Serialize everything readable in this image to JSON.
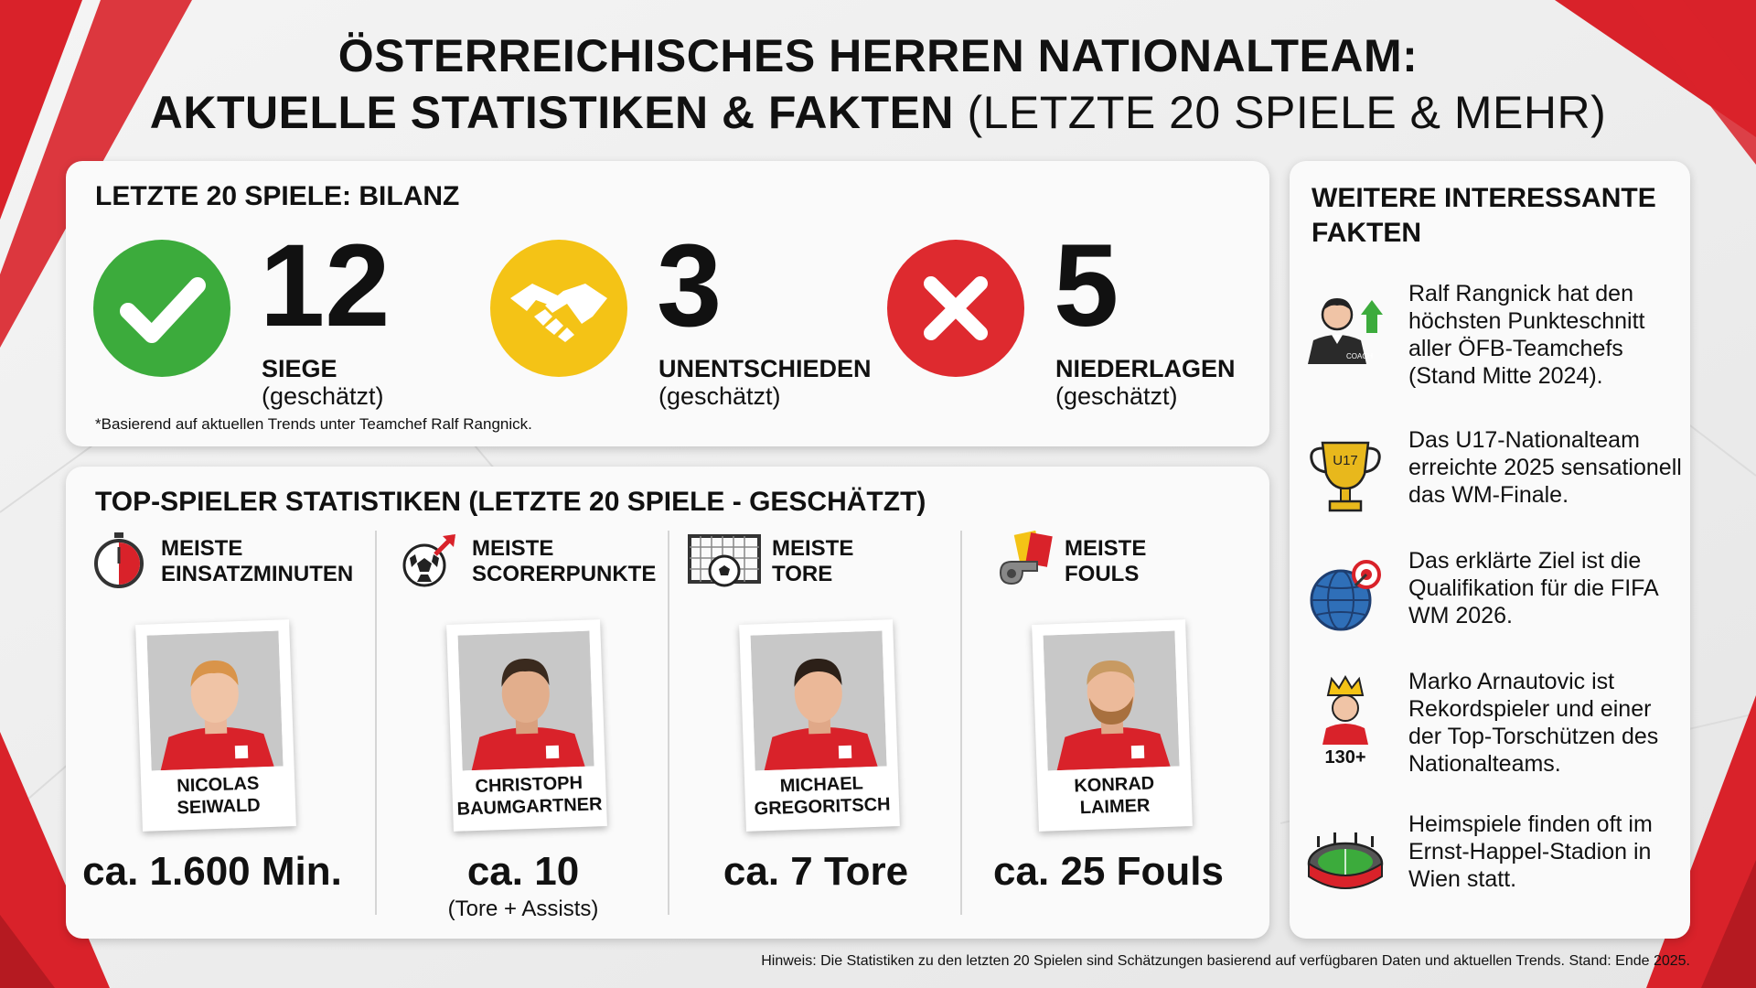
{
  "title": {
    "line1": "ÖSTERREICHISCHES HERREN NATIONALTEAM:",
    "line2_bold": "AKTUELLE STATISTIKEN & FAKTEN",
    "line2_light": "(LETZTE 20 SPIELE & MEHR)"
  },
  "bilanz": {
    "heading": "LETZTE 20 SPIELE: BILANZ",
    "stats": [
      {
        "value": "12",
        "label": "SIEGE",
        "note": "(geschätzt)",
        "color": "#3cab3c"
      },
      {
        "value": "3",
        "label": "UNENTSCHIEDEN",
        "note": "(geschätzt)",
        "color": "#f4c316"
      },
      {
        "value": "5",
        "label": "NIEDERLAGEN",
        "note": "(geschätzt)",
        "color": "#de2a2f"
      }
    ],
    "footnote": "*Basierend auf aktuellen Trends unter Teamchef Ralf Rangnick."
  },
  "players": {
    "heading": "TOP-SPIELER STATISTIKEN (LETZTE 20 SPIELE - GESCHÄTZT)",
    "columns": [
      {
        "cat1": "MEISTE",
        "cat2": "EINSATZMINUTEN",
        "name1": "NICOLAS",
        "name2": "SEIWALD",
        "value": "ca. 1.600 Min.",
        "sub": "",
        "icon": "stopwatch-icon"
      },
      {
        "cat1": "MEISTE",
        "cat2": "SCORERPUNKTE",
        "name1": "CHRISTOPH",
        "name2": "BAUMGARTNER",
        "value": "ca. 10",
        "sub": "(Tore + Assists)",
        "icon": "ball-arrow-icon"
      },
      {
        "cat1": "MEISTE",
        "cat2": "TORE",
        "name1": "MICHAEL",
        "name2": "GREGORITSCH",
        "value": "ca. 7 Tore",
        "sub": "",
        "icon": "goal-net-icon"
      },
      {
        "cat1": "MEISTE",
        "cat2": "FOULS",
        "name1": "KONRAD",
        "name2": "LAIMER",
        "value": "ca. 25 Fouls",
        "sub": "",
        "icon": "whistle-cards-icon"
      }
    ]
  },
  "facts": {
    "heading": "WEITERE INTERESSANTE FAKTEN",
    "items": [
      {
        "text": "Ralf Rangnick hat den höchsten Punkteschnitt aller ÖFB-Teamchefs (Stand Mitte 2024).",
        "icon": "coach-icon",
        "badge": "COACH"
      },
      {
        "text": "Das U17-Nationalteam erreichte 2025 sensationell das WM-Finale.",
        "icon": "trophy-icon",
        "badge": "U17"
      },
      {
        "text": "Das erklärte Ziel ist die Qualifikation für die FIFA WM 2026.",
        "icon": "globe-target-icon"
      },
      {
        "text": "Marko Arnautovic ist Rekordspieler und einer der Top-Torschützen des Nationalteams.",
        "icon": "crowned-player-icon",
        "badge": "130+"
      },
      {
        "text": "Heimspiele finden oft im Ernst-Happel-Stadion in Wien statt.",
        "icon": "stadium-icon"
      }
    ]
  },
  "hinweis": "Hinweis: Die Statistiken zu den letzten 20 Spielen sind Schätzungen basierend auf verfügbaren Daten und aktuellen Trends. Stand: Ende 2025.",
  "colors": {
    "red": "#d9222a",
    "green": "#3cab3c",
    "yellow": "#f4c316"
  }
}
